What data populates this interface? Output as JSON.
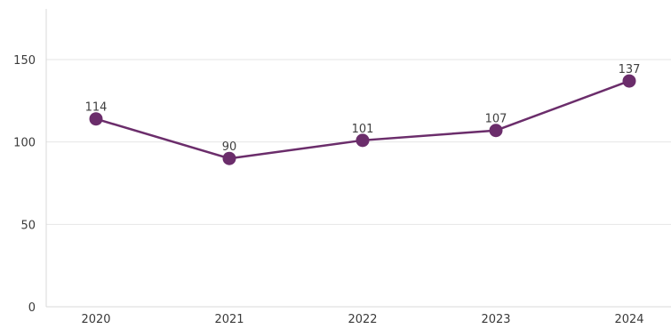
{
  "chart_data": {
    "type": "line",
    "title": "",
    "xlabel": "",
    "ylabel": "",
    "categories": [
      "2020",
      "2021",
      "2022",
      "2023",
      "2024"
    ],
    "series": [
      {
        "values": [
          114,
          90,
          101,
          107,
          137
        ]
      }
    ],
    "ylim": [
      0,
      180
    ],
    "yticks": [
      0,
      50,
      100,
      150
    ],
    "grid": true,
    "legend": "none",
    "colors": {
      "line": "#6b2d6b",
      "marker": "#6b2d6b",
      "grid": "#e6e6e6",
      "axis": "#d9d9d9",
      "text": "#3a3a3a"
    }
  }
}
